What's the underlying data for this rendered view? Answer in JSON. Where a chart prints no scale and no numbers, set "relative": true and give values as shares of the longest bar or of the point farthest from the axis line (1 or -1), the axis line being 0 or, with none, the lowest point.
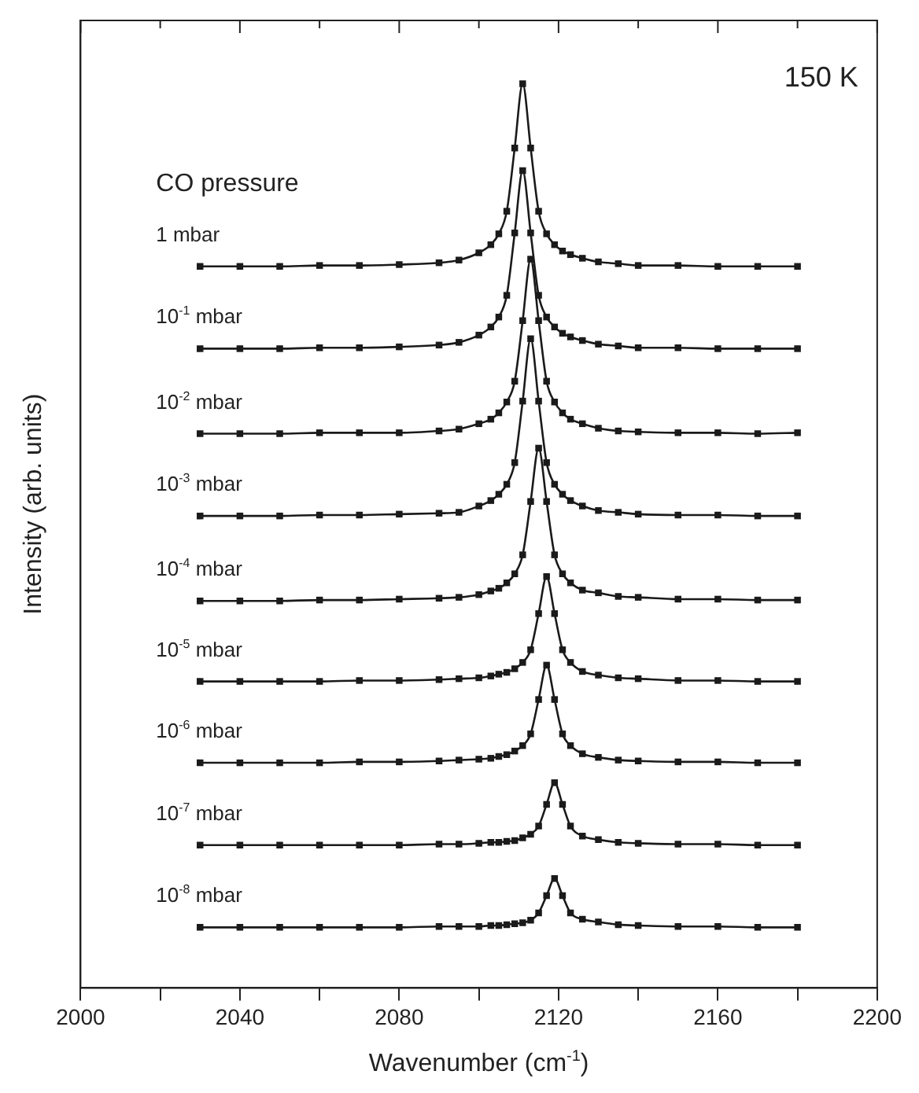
{
  "chart_data": {
    "type": "line",
    "relative": true,
    "xlabel": "Wavenumber (cm$^{-1}$)",
    "ylabel": "Intensity (arb. units)",
    "legend_title": "CO pressure",
    "annotations": [
      "150 K"
    ],
    "x": [
      2030,
      2040,
      2050,
      2060,
      2070,
      2080,
      2090,
      2095,
      2100,
      2103,
      2105,
      2107,
      2109,
      2111,
      2113,
      2115,
      2117,
      2119,
      2121,
      2123,
      2126,
      2130,
      2135,
      2140,
      2150,
      2160,
      2170,
      2180
    ],
    "xlim": [
      2000,
      2200
    ],
    "xticks": [
      2000,
      {
        "value": 2020,
        "label": null
      },
      2040,
      {
        "value": 2060,
        "label": null
      },
      2080,
      {
        "value": 2100,
        "label": null
      },
      2120,
      {
        "value": 2140,
        "label": null
      },
      2160,
      {
        "value": 2180,
        "label": null
      },
      2200
    ],
    "grid": false,
    "legend": false,
    "marker": "square",
    "line_style": "solid",
    "series": [
      {
        "name": "1 mbar",
        "color": "#1a1a1a",
        "values": [
          0.798,
          0.798,
          0.798,
          0.799,
          0.799,
          0.8,
          0.802,
          0.805,
          0.813,
          0.822,
          0.834,
          0.859,
          0.929,
          1.0,
          0.929,
          0.859,
          0.834,
          0.822,
          0.815,
          0.811,
          0.807,
          0.803,
          0.801,
          0.799,
          0.799,
          0.798,
          0.798,
          0.798
        ]
      },
      {
        "name": "10$^{-1}$ mbar",
        "color": "#1a1a1a",
        "values": [
          0.707,
          0.707,
          0.707,
          0.708,
          0.708,
          0.709,
          0.711,
          0.714,
          0.722,
          0.731,
          0.742,
          0.766,
          0.835,
          0.904,
          0.835,
          0.766,
          0.742,
          0.731,
          0.724,
          0.72,
          0.716,
          0.712,
          0.71,
          0.708,
          0.708,
          0.707,
          0.707,
          0.707
        ]
      },
      {
        "name": "10$^{-2}$ mbar",
        "color": "#1a1a1a",
        "values": [
          0.613,
          0.613,
          0.613,
          0.614,
          0.614,
          0.614,
          0.616,
          0.618,
          0.624,
          0.629,
          0.636,
          0.648,
          0.671,
          0.738,
          0.806,
          0.738,
          0.671,
          0.648,
          0.636,
          0.629,
          0.624,
          0.619,
          0.616,
          0.615,
          0.614,
          0.614,
          0.613,
          0.614
        ]
      },
      {
        "name": "10$^{-3}$ mbar",
        "color": "#1a1a1a",
        "values": [
          0.522,
          0.522,
          0.522,
          0.523,
          0.523,
          0.524,
          0.525,
          0.526,
          0.533,
          0.539,
          0.546,
          0.557,
          0.581,
          0.649,
          0.718,
          0.649,
          0.581,
          0.557,
          0.546,
          0.539,
          0.533,
          0.528,
          0.526,
          0.524,
          0.523,
          0.523,
          0.522,
          0.522
        ]
      },
      {
        "name": "10$^{-4}$ mbar",
        "color": "#1a1a1a",
        "values": [
          0.428,
          0.428,
          0.428,
          0.429,
          0.429,
          0.43,
          0.431,
          0.432,
          0.435,
          0.439,
          0.442,
          0.448,
          0.458,
          0.479,
          0.538,
          0.597,
          0.538,
          0.479,
          0.458,
          0.448,
          0.44,
          0.437,
          0.433,
          0.432,
          0.43,
          0.43,
          0.429,
          0.429
        ]
      },
      {
        "name": "10$^{-5}$ mbar",
        "color": "#1a1a1a",
        "values": [
          0.339,
          0.339,
          0.339,
          0.339,
          0.34,
          0.34,
          0.341,
          0.342,
          0.343,
          0.345,
          0.347,
          0.349,
          0.353,
          0.36,
          0.374,
          0.414,
          0.455,
          0.414,
          0.374,
          0.36,
          0.35,
          0.346,
          0.343,
          0.342,
          0.34,
          0.34,
          0.339,
          0.339
        ]
      },
      {
        "name": "10$^{-6}$ mbar",
        "color": "#1a1a1a",
        "values": [
          0.249,
          0.249,
          0.249,
          0.249,
          0.25,
          0.25,
          0.251,
          0.252,
          0.253,
          0.254,
          0.256,
          0.258,
          0.262,
          0.268,
          0.281,
          0.319,
          0.357,
          0.319,
          0.281,
          0.268,
          0.259,
          0.255,
          0.252,
          0.251,
          0.25,
          0.25,
          0.249,
          0.249
        ]
      },
      {
        "name": "10$^{-7}$ mbar",
        "color": "#1a1a1a",
        "values": [
          0.158,
          0.158,
          0.158,
          0.158,
          0.158,
          0.158,
          0.159,
          0.159,
          0.16,
          0.161,
          0.161,
          0.162,
          0.163,
          0.166,
          0.17,
          0.179,
          0.203,
          0.227,
          0.203,
          0.179,
          0.168,
          0.164,
          0.161,
          0.16,
          0.159,
          0.159,
          0.158,
          0.158
        ]
      },
      {
        "name": "10$^{-8}$ mbar",
        "color": "#1a1a1a",
        "values": [
          0.067,
          0.067,
          0.067,
          0.067,
          0.067,
          0.067,
          0.068,
          0.068,
          0.068,
          0.069,
          0.069,
          0.07,
          0.071,
          0.072,
          0.075,
          0.083,
          0.102,
          0.121,
          0.102,
          0.083,
          0.076,
          0.073,
          0.07,
          0.069,
          0.068,
          0.068,
          0.067,
          0.067
        ]
      }
    ]
  }
}
